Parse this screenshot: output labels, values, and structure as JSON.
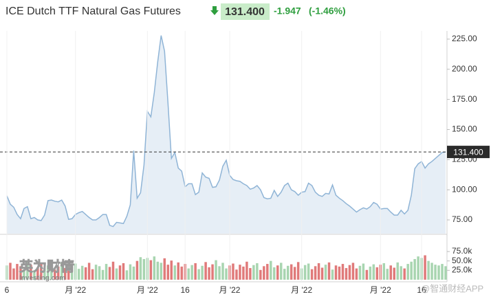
{
  "chart_data": [
    {
      "type": "area",
      "title": "ICE Dutch TTF Natural Gas Futures",
      "price_line": {
        "value": 131.4,
        "label": "131.400"
      },
      "change": "-1.947",
      "change_pct": "(-1.46%)",
      "color": "#8fb4d6",
      "fill": "#e6eef6",
      "categories": [
        "6",
        null,
        null,
        null,
        null,
        null,
        null,
        null,
        null,
        null,
        null,
        null,
        null,
        null,
        null,
        null,
        null,
        null,
        null,
        null,
        "月 '22",
        null,
        null,
        null,
        null,
        null,
        null,
        null,
        null,
        null,
        null,
        null,
        null,
        null,
        null,
        null,
        null,
        null,
        null,
        null,
        null,
        "月 '22",
        null,
        null,
        null,
        null,
        null,
        null,
        null,
        null,
        null,
        null,
        "16",
        null,
        null,
        null,
        null,
        null,
        null,
        null,
        null,
        null,
        null,
        null,
        null,
        "月 '22",
        null,
        null,
        null,
        null,
        null,
        null,
        null,
        null,
        null,
        null,
        null,
        null,
        null,
        null,
        null,
        null,
        null,
        null,
        null,
        null,
        "月 '22",
        null,
        null,
        null,
        null,
        null,
        null,
        null,
        null,
        null,
        null,
        null,
        null,
        null,
        null,
        null,
        null,
        null,
        null,
        null,
        null,
        null,
        null,
        "月 '22",
        null,
        null,
        null,
        null,
        null,
        null,
        null,
        null,
        null,
        null,
        null,
        "16",
        null,
        null,
        null,
        null,
        null,
        null,
        null
      ],
      "values": [
        95,
        88,
        85.5,
        79.5,
        76,
        84.5,
        86,
        76,
        77,
        75,
        74.5,
        79,
        91,
        91.5,
        90.5,
        90,
        91.5,
        86.5,
        75.5,
        76,
        79.5,
        81,
        82,
        79.5,
        77,
        75,
        75,
        77,
        79.5,
        79.5,
        70.5,
        69.5,
        73,
        72.5,
        72,
        78,
        87.5,
        132.5,
        93,
        97.5,
        120.5,
        165,
        160.5,
        180.5,
        206,
        228,
        215,
        172,
        126,
        131,
        118,
        115.5,
        102.5,
        105,
        105,
        96,
        98,
        114,
        110.5,
        109.5,
        102,
        102.5,
        108,
        119.5,
        124.5,
        112,
        108.5,
        107.5,
        107,
        105,
        103.5,
        100.5,
        101.5,
        103.5,
        100,
        93.5,
        92.5,
        93,
        99.5,
        94.5,
        98,
        103.5,
        105.5,
        100,
        98.5,
        95.5,
        98,
        98.5,
        105.5,
        103.5,
        98,
        95.5,
        94.5,
        97,
        96.5,
        104,
        95.5,
        93,
        91,
        88.5,
        86.5,
        84,
        81.5,
        83.5,
        85,
        84,
        86,
        89.5,
        88,
        84,
        84.5,
        84.5,
        81.5,
        79,
        79,
        83,
        80,
        83,
        95.5,
        117.5,
        121.5,
        123.5,
        118,
        121.5,
        123.5,
        126,
        128.5,
        131,
        131.4
      ],
      "ylim": [
        63.6,
        231.8
      ],
      "yticks": [
        {
          "value": 75,
          "label": "75.00"
        },
        {
          "value": 100,
          "label": "100.00"
        },
        {
          "value": 125,
          "label": "125.00"
        },
        {
          "value": 150,
          "label": "150.00"
        },
        {
          "value": 175,
          "label": "175.00"
        },
        {
          "value": 200,
          "label": "200.00"
        },
        {
          "value": 225,
          "label": "225.00"
        }
      ],
      "watermarks": [
        "英为财情",
        "Investing.com",
        "@智通财经APP"
      ]
    },
    {
      "type": "bar",
      "up_color": "#a8d5b0",
      "down_color": "#e07a7a",
      "values": [
        38000,
        45000,
        30000,
        42000,
        36000,
        28000,
        47000,
        40000,
        25000,
        33000,
        44000,
        30000,
        38000,
        41000,
        27000,
        35000,
        46000,
        31000,
        24000,
        39000,
        43000,
        29000,
        37000,
        33000,
        45000,
        28000,
        40000,
        36000,
        26000,
        42000,
        34000,
        48000,
        30000,
        38000,
        44000,
        25000,
        41000,
        35000,
        50000,
        60000,
        55000,
        58000,
        52000,
        62000,
        48000,
        45000,
        57000,
        40000,
        51000,
        38000,
        46000,
        35000,
        42000,
        30000,
        39000,
        44000,
        28000,
        37000,
        47000,
        33000,
        41000,
        52000,
        36000,
        45000,
        30000,
        38000,
        43000,
        27000,
        40000,
        35000,
        48000,
        31000,
        39000,
        44000,
        26000,
        36000,
        42000,
        50000,
        33000,
        38000,
        45000,
        29000,
        37000,
        41000,
        34000,
        47000,
        30000,
        39000,
        43000,
        28000,
        36000,
        44000,
        32000,
        40000,
        46000,
        27000,
        38000,
        35000,
        42000,
        31000,
        39000,
        45000,
        30000,
        37000,
        43000,
        26000,
        35000,
        41000,
        33000,
        40000,
        44000,
        29000,
        38000,
        32000,
        46000,
        36000,
        30000,
        42000,
        48000,
        55000,
        62000,
        58000,
        65000,
        50000,
        45000,
        40000,
        38000,
        42000,
        36000
      ],
      "ylim": [
        0,
        119000
      ],
      "yticks": [
        {
          "value": 25000,
          "label": "25.0k"
        },
        {
          "value": 50000,
          "label": "50.0k"
        },
        {
          "value": 75000,
          "label": "75.0k"
        }
      ]
    }
  ]
}
